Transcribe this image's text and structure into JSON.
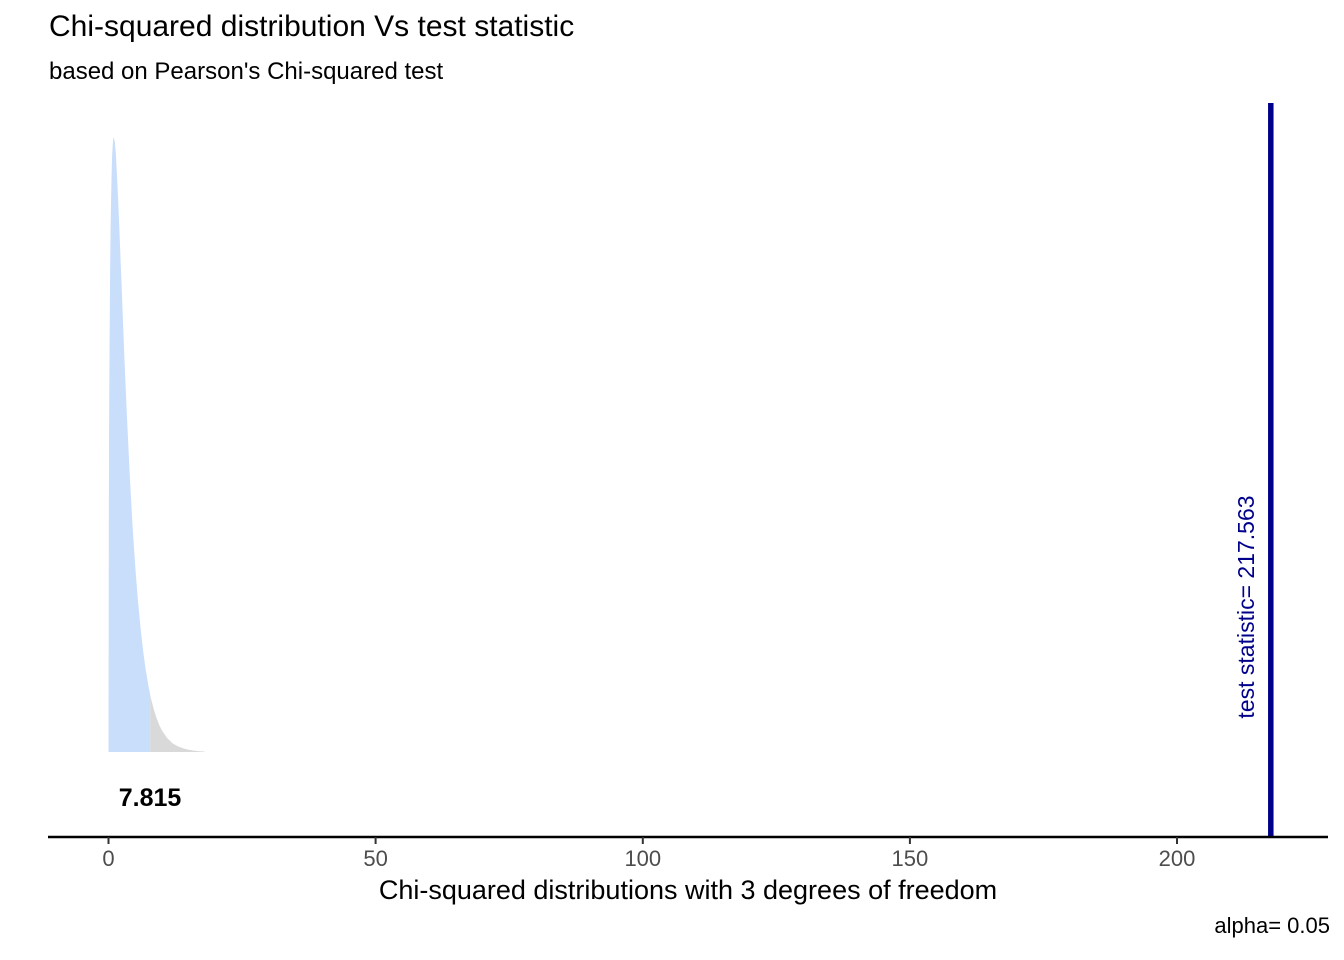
{
  "header": {
    "title": "Chi-squared distribution Vs test statistic",
    "subtitle": "based on Pearson's Chi-squared test"
  },
  "chart_data": {
    "type": "area",
    "title": "Chi-squared distribution Vs test statistic",
    "subtitle": "based on Pearson's Chi-squared test",
    "xlabel": "Chi-squared distributions with 3 degrees of freedom",
    "ylabel": "",
    "x_ticks": [
      0,
      50,
      100,
      150,
      200
    ],
    "xlim": [
      -11.3,
      231.3
    ],
    "ylim_density": [
      0,
      0.27
    ],
    "grid": false,
    "legend": false,
    "degrees_of_freedom": 3,
    "alpha": 0.05,
    "critical_value": 7.815,
    "test_statistic": 217.563,
    "tail_max_x": 18,
    "annotations": {
      "critical_value_label": "7.815",
      "test_statistic_label": "test statistic= 217.563",
      "alpha_label": "alpha= 0.05"
    },
    "series": [
      {
        "name": "chi-squared density, non-rejection region (x <= 7.815)",
        "fill": "#C9DEFB"
      },
      {
        "name": "chi-squared density, rejection tail (x > 7.815)",
        "fill": "#D9D9D9"
      }
    ],
    "density_points": [
      [
        0,
        0
      ],
      [
        0.05,
        0.087
      ],
      [
        0.1,
        0.12
      ],
      [
        0.15,
        0.1433
      ],
      [
        0.2,
        0.1614
      ],
      [
        0.3,
        0.1881
      ],
      [
        0.4,
        0.2066
      ],
      [
        0.5,
        0.2197
      ],
      [
        0.6,
        0.2289
      ],
      [
        0.7,
        0.2352
      ],
      [
        0.8,
        0.2392
      ],
      [
        0.9,
        0.2413
      ],
      [
        1,
        0.242
      ],
      [
        1.2,
        0.2398
      ],
      [
        1.4,
        0.2344
      ],
      [
        1.6,
        0.2267
      ],
      [
        1.8,
        0.2176
      ],
      [
        2,
        0.2076
      ],
      [
        2.25,
        0.1943
      ],
      [
        2.5,
        0.1807
      ],
      [
        2.75,
        0.1672
      ],
      [
        3,
        0.1542
      ],
      [
        3.25,
        0.1416
      ],
      [
        3.5,
        0.1297
      ],
      [
        4,
        0.108
      ],
      [
        4.5,
        0.0892
      ],
      [
        5,
        0.0732
      ],
      [
        5.5,
        0.0598
      ],
      [
        6,
        0.0487
      ],
      [
        6.5,
        0.0395
      ],
      [
        7,
        0.0319
      ],
      [
        7.5,
        0.0257
      ],
      [
        7.815,
        0.0224
      ],
      [
        8,
        0.0207
      ],
      [
        8.5,
        0.0166
      ],
      [
        9,
        0.0133
      ],
      [
        9.5,
        0.0106
      ],
      [
        10,
        0.0085
      ],
      [
        11,
        0.0054
      ],
      [
        12,
        0.0034
      ],
      [
        13,
        0.0022
      ],
      [
        14,
        0.0014
      ],
      [
        15,
        0.00085
      ],
      [
        16,
        0.00054
      ],
      [
        17,
        0.00033
      ],
      [
        18,
        0.0002
      ]
    ]
  },
  "colors": {
    "accept_fill": "#C9DEFB",
    "reject_fill": "#D9D9D9",
    "test_stat_line": "#00008B",
    "axis_line": "#000000",
    "tick_mark": "#333333",
    "tick_label": "#4d4d4d"
  }
}
